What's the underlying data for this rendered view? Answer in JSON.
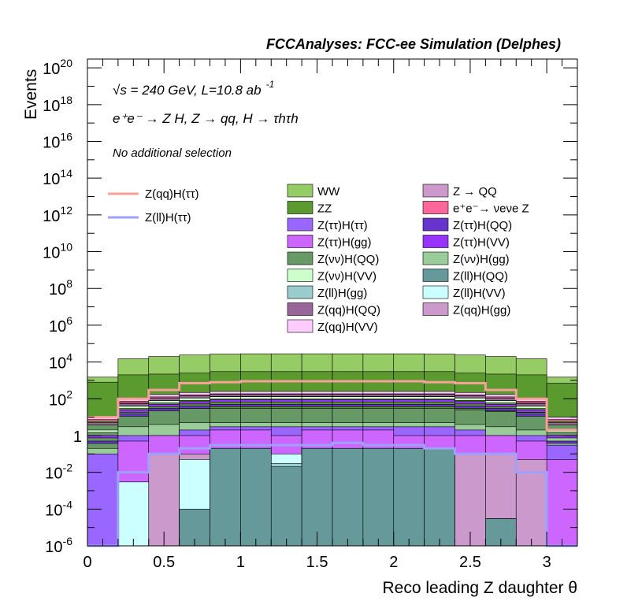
{
  "chart_data": {
    "type": "stacked-histogram",
    "header": "FCCAnalyses: FCC-ee Simulation (Delphes)",
    "xlabel": "Reco leading Z daughter θ",
    "ylabel": "Events",
    "yscale": "log",
    "xlim": [
      0,
      3.2
    ],
    "ylim": [
      1e-06,
      3e+20
    ],
    "x_ticks": [
      "0",
      "0.5",
      "1",
      "1.5",
      "2",
      "2.5",
      "3"
    ],
    "y_ticks": [
      {
        "base": "10",
        "exp": "-6"
      },
      {
        "base": "10",
        "exp": "-4"
      },
      {
        "base": "10",
        "exp": "-2"
      },
      {
        "base": "1",
        "exp": ""
      },
      {
        "base": "10",
        "exp": "2"
      },
      {
        "base": "10",
        "exp": "4"
      },
      {
        "base": "10",
        "exp": "6"
      },
      {
        "base": "10",
        "exp": "8"
      },
      {
        "base": "10",
        "exp": "10"
      },
      {
        "base": "10",
        "exp": "12"
      },
      {
        "base": "10",
        "exp": "14"
      },
      {
        "base": "10",
        "exp": "16"
      },
      {
        "base": "10",
        "exp": "18"
      },
      {
        "base": "10",
        "exp": "20"
      }
    ],
    "annotations": {
      "energy": "√s = 240 GeV, L=10.8 ab",
      "energy_sup": "-1",
      "process": "e⁺e⁻ → Z H, Z  → qq, H  →  τhτh",
      "selection": "No additional selection"
    },
    "bin_edges": [
      0,
      0.2,
      0.4,
      0.6,
      0.8,
      1.0,
      1.2,
      1.4,
      1.6,
      1.8,
      2.0,
      2.2,
      2.4,
      2.6,
      2.8,
      3.0,
      3.2
    ],
    "stack_totals": [
      {
        "name": "Z(ll)H(QQ)",
        "values": [
          0,
          0,
          0,
          0.0001,
          0.2,
          0.2,
          0.02,
          0.2,
          0.2,
          0.2,
          0.2,
          0.2,
          0,
          3e-05,
          0,
          0
        ]
      },
      {
        "name": "Z(ll)H(gg)",
        "values": [
          0,
          0,
          0,
          0.0001,
          0.2,
          0.2,
          0.03,
          0.2,
          0.2,
          0.2,
          0.03,
          0.03,
          0,
          3e-05,
          0,
          0
        ]
      },
      {
        "name": "Z(ll)H(VV)",
        "values": [
          0,
          0.003,
          0,
          0.05,
          0.2,
          0.2,
          0.1,
          0.2,
          0.03,
          0.2,
          0.03,
          0.03,
          0,
          3e-05,
          0,
          0
        ]
      },
      {
        "name": "Z(qq)H(gg)",
        "values": [
          0,
          0.003,
          0.1,
          0.1,
          0.2,
          0.2,
          0.1,
          0.2,
          0.2,
          0.2,
          0.1,
          0.1,
          0.1,
          0.1,
          0.05,
          0
        ]
      },
      {
        "name": "Z(ττ)H(gg)",
        "values": [
          1e-06,
          0.5,
          1,
          1,
          2,
          2,
          1,
          2,
          2,
          2,
          1,
          1,
          1,
          1,
          0.5,
          0.05
        ]
      },
      {
        "name": "Z(ττ)H(ττ)",
        "values": [
          0.1,
          1,
          1,
          2,
          3,
          3,
          3,
          3,
          3,
          3,
          3,
          3,
          2,
          1,
          1,
          0.3
        ]
      },
      {
        "name": "Z(νν)H(gg)",
        "values": [
          0.2,
          3,
          4,
          5,
          5,
          5,
          5,
          5,
          5,
          5,
          5,
          5,
          4,
          3,
          2,
          1
        ]
      },
      {
        "name": "Z(νν)H(QQ)",
        "values": [
          4,
          20,
          25,
          30,
          30,
          30,
          30,
          30,
          30,
          30,
          30,
          30,
          25,
          20,
          18,
          4
        ]
      },
      {
        "name": "ZZ",
        "values": [
          800,
          2000,
          2200,
          2500,
          3000,
          3000,
          3000,
          3000,
          3000,
          3000,
          3000,
          3000,
          2500,
          2200,
          2000,
          700
        ]
      },
      {
        "name": "WW",
        "values": [
          1500,
          15000,
          20000,
          24000,
          27000,
          28000,
          28000,
          28000,
          28000,
          28000,
          28000,
          27000,
          24000,
          20000,
          15000,
          1500
        ]
      }
    ],
    "stack_layers": [
      {
        "name": "Z(ττ)H(QQ)",
        "values": [
          0.5,
          15,
          30,
          40,
          50,
          50,
          50,
          50,
          50,
          50,
          50,
          50,
          40,
          30,
          15,
          0.5
        ]
      },
      {
        "name": "Z(ττ)H(VV)",
        "values": [
          1,
          25,
          50,
          70,
          90,
          90,
          90,
          90,
          90,
          90,
          90,
          90,
          70,
          50,
          25,
          1
        ]
      },
      {
        "name": "Z(νν)H(VV)",
        "values": [
          2,
          40,
          80,
          110,
          130,
          130,
          130,
          130,
          130,
          130,
          130,
          130,
          110,
          80,
          40,
          2
        ]
      },
      {
        "name": "Z(qq)H(QQ)",
        "values": [
          5,
          55,
          110,
          150,
          180,
          180,
          180,
          180,
          180,
          180,
          180,
          180,
          150,
          110,
          55,
          5
        ]
      },
      {
        "name": "e⁺e⁻→ νeνe Z",
        "values": [
          8,
          80,
          150,
          200,
          230,
          230,
          230,
          230,
          230,
          230,
          230,
          230,
          200,
          150,
          80,
          8
        ]
      },
      {
        "name": "Z(qq)H(VV)",
        "values": [
          10,
          100,
          170,
          220,
          250,
          250,
          250,
          250,
          250,
          250,
          250,
          250,
          220,
          170,
          100,
          10
        ]
      }
    ],
    "unstacked_lines": [
      {
        "name": "Z(qq)H(ττ)",
        "color": "#f5a19a",
        "values": [
          10,
          100,
          300,
          700,
          800,
          900,
          900,
          900,
          900,
          900,
          900,
          800,
          700,
          300,
          100,
          2
        ]
      },
      {
        "name": "Z(ll)H(ττ)",
        "color": "#9ea0ff",
        "values": [
          1e-06,
          0.01,
          0.1,
          0.2,
          0.3,
          0.3,
          0.3,
          0.3,
          0.4,
          0.3,
          0.3,
          0.2,
          0.1,
          0.1,
          0.01,
          1e-06
        ]
      }
    ],
    "legend": [
      {
        "name": "WW",
        "color": "#96cc66"
      },
      {
        "name": "Z → QQ",
        "color": "#cc99cc"
      },
      {
        "name": "ZZ",
        "color": "#5b9a2e"
      },
      {
        "name": "e⁺e⁻→ νeνe Z",
        "color": "#ff6699"
      },
      {
        "name": "Z(ττ)H(ττ)",
        "color": "#9966ff"
      },
      {
        "name": "Z(ττ)H(QQ)",
        "color": "#6633cc"
      },
      {
        "name": "Z(ττ)H(gg)",
        "color": "#cc66ff"
      },
      {
        "name": "Z(ττ)H(VV)",
        "color": "#9933ff"
      },
      {
        "name": "Z(νν)H(QQ)",
        "color": "#669966"
      },
      {
        "name": "Z(νν)H(gg)",
        "color": "#99cc99"
      },
      {
        "name": "Z(νν)H(VV)",
        "color": "#ccffcc"
      },
      {
        "name": "Z(ll)H(QQ)",
        "color": "#669999"
      },
      {
        "name": "Z(ll)H(gg)",
        "color": "#99cccc"
      },
      {
        "name": "Z(ll)H(VV)",
        "color": "#ccffff"
      },
      {
        "name": "Z(qq)H(QQ)",
        "color": "#996699"
      },
      {
        "name": "Z(qq)H(gg)",
        "color": "#cc99cc"
      },
      {
        "name": "Z(qq)H(VV)",
        "color": "#ffccff"
      }
    ],
    "line_legend": [
      {
        "name": "Z(qq)H(ττ)",
        "color": "#f5a19a"
      },
      {
        "name": "Z(ll)H(ττ)",
        "color": "#9ea0ff"
      }
    ]
  }
}
